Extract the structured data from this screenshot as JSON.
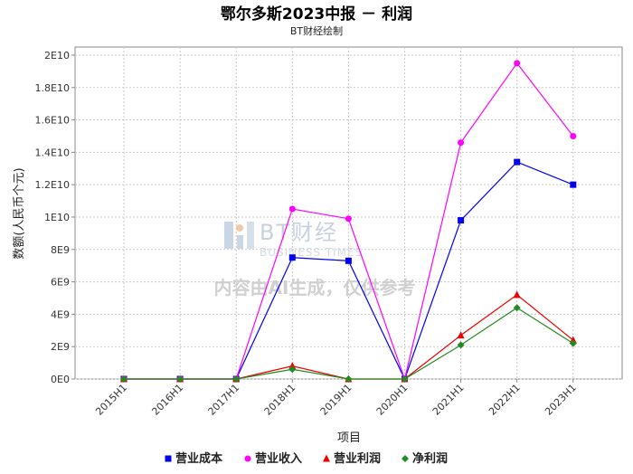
{
  "chart_data": {
    "type": "line",
    "title": "鄂尔多斯2023中报 － 利润",
    "subtitle": "BT财经绘制",
    "xlabel": "项目",
    "ylabel": "数额(人民币个元)",
    "categories": [
      "2015H1",
      "2016H1",
      "2017H1",
      "2018H1",
      "2019H1",
      "2020H1",
      "2021H1",
      "2022H1",
      "2023H1"
    ],
    "ylim": [
      0,
      20500000000
    ],
    "yticks": [
      0,
      2000000000,
      4000000000,
      6000000000,
      8000000000,
      10000000000,
      12000000000,
      14000000000,
      16000000000,
      18000000000,
      20000000000
    ],
    "ytick_labels": [
      "0E0",
      "2E9",
      "4E9",
      "6E9",
      "8E9",
      "1E10",
      "1.2E10",
      "1.4E10",
      "1.6E10",
      "1.8E10",
      "2E10"
    ],
    "grid": true,
    "legend_position": "bottom",
    "series": [
      {
        "name": "营业成本",
        "color": "#0000ee",
        "marker": "square",
        "values": [
          0,
          0,
          0,
          7500000000,
          7300000000,
          0,
          9800000000,
          13400000000,
          12000000000
        ]
      },
      {
        "name": "营业收入",
        "color": "#ff00ff",
        "marker": "circle",
        "values": [
          0,
          0,
          0,
          10500000000,
          9900000000,
          0,
          14600000000,
          19500000000,
          15000000000
        ]
      },
      {
        "name": "营业利润",
        "color": "#ee0000",
        "marker": "triangle",
        "values": [
          0,
          0,
          0,
          800000000,
          0,
          0,
          2700000000,
          5200000000,
          2400000000
        ]
      },
      {
        "name": "净利润",
        "color": "#228b22",
        "marker": "diamond",
        "values": [
          0,
          0,
          0,
          600000000,
          0,
          0,
          2100000000,
          4400000000,
          2200000000
        ]
      }
    ]
  },
  "watermark": {
    "brand": "BT财经",
    "brand_sub": "BUSINESS TIMES",
    "notice": "内容由AI生成，仅供参考"
  }
}
